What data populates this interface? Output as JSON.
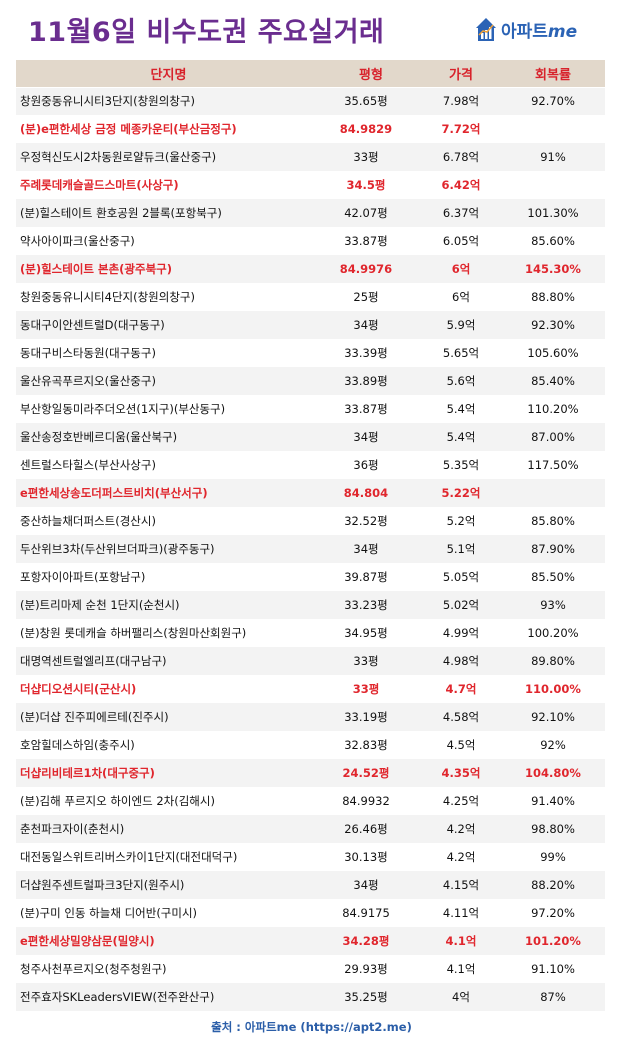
{
  "header": {
    "title": "11월6일 비수도권 주요실거래",
    "logo_text": "아파트",
    "logo_suffix": "me"
  },
  "table": {
    "columns": [
      "단지명",
      "평형",
      "가격",
      "회복률"
    ],
    "rows": [
      {
        "name": "창원중동유니시티3단지(창원의창구)",
        "area": "35.65평",
        "price": "7.98억",
        "rate": "92.70%",
        "highlight": false,
        "rate_red": false
      },
      {
        "name": "(분)e편한세상 금정 메종카운티(부산금정구)",
        "area": "84.9829",
        "price": "7.72억",
        "rate": "",
        "highlight": true,
        "rate_red": false
      },
      {
        "name": "우정혁신도시2차동원로얄듀크(울산중구)",
        "area": "33평",
        "price": "6.78억",
        "rate": "91%",
        "highlight": false,
        "rate_red": false
      },
      {
        "name": "주례롯데캐슬골드스마트(사상구)",
        "area": "34.5평",
        "price": "6.42억",
        "rate": "",
        "highlight": true,
        "rate_red": false
      },
      {
        "name": "(분)힐스테이트 환호공원 2블록(포항북구)",
        "area": "42.07평",
        "price": "6.37억",
        "rate": "101.30%",
        "highlight": false,
        "rate_red": false
      },
      {
        "name": "약사아이파크(울산중구)",
        "area": "33.87평",
        "price": "6.05억",
        "rate": "85.60%",
        "highlight": false,
        "rate_red": false
      },
      {
        "name": "(분)힐스테이트 본촌(광주북구)",
        "area": "84.9976",
        "price": "6억",
        "rate": "145.30%",
        "highlight": true,
        "rate_red": true
      },
      {
        "name": "창원중동유니시티4단지(창원의창구)",
        "area": "25평",
        "price": "6억",
        "rate": "88.80%",
        "highlight": false,
        "rate_red": false
      },
      {
        "name": "동대구이안센트럴D(대구동구)",
        "area": "34평",
        "price": "5.9억",
        "rate": "92.30%",
        "highlight": false,
        "rate_red": false
      },
      {
        "name": "동대구비스타동원(대구동구)",
        "area": "33.39평",
        "price": "5.65억",
        "rate": "105.60%",
        "highlight": false,
        "rate_red": false
      },
      {
        "name": "울산유곡푸르지오(울산중구)",
        "area": "33.89평",
        "price": "5.6억",
        "rate": "85.40%",
        "highlight": false,
        "rate_red": false
      },
      {
        "name": "부산항일동미라주더오션(1지구)(부산동구)",
        "area": "33.87평",
        "price": "5.4억",
        "rate": "110.20%",
        "highlight": false,
        "rate_red": false
      },
      {
        "name": "울산송정호반베르디움(울산북구)",
        "area": "34평",
        "price": "5.4억",
        "rate": "87.00%",
        "highlight": false,
        "rate_red": false
      },
      {
        "name": "센트럴스타힐스(부산사상구)",
        "area": "36평",
        "price": "5.35억",
        "rate": "117.50%",
        "highlight": false,
        "rate_red": false
      },
      {
        "name": "e편한세상송도더퍼스트비치(부산서구)",
        "area": "84.804",
        "price": "5.22억",
        "rate": "",
        "highlight": true,
        "rate_red": false
      },
      {
        "name": "중산하늘채더퍼스트(경산시)",
        "area": "32.52평",
        "price": "5.2억",
        "rate": "85.80%",
        "highlight": false,
        "rate_red": false
      },
      {
        "name": "두산위브3차(두산위브더파크)(광주동구)",
        "area": "34평",
        "price": "5.1억",
        "rate": "87.90%",
        "highlight": false,
        "rate_red": false
      },
      {
        "name": "포항자이아파트(포항남구)",
        "area": "39.87평",
        "price": "5.05억",
        "rate": "85.50%",
        "highlight": false,
        "rate_red": false
      },
      {
        "name": "(분)트리마제 순천 1단지(순천시)",
        "area": "33.23평",
        "price": "5.02억",
        "rate": "93%",
        "highlight": false,
        "rate_red": false
      },
      {
        "name": "(분)창원 롯데캐슬 하버팰리스(창원마산회원구)",
        "area": "34.95평",
        "price": "4.99억",
        "rate": "100.20%",
        "highlight": false,
        "rate_red": false
      },
      {
        "name": "대명역센트럴엘리프(대구남구)",
        "area": "33평",
        "price": "4.98억",
        "rate": "89.80%",
        "highlight": false,
        "rate_red": false
      },
      {
        "name": "더샵디오션시티(군산시)",
        "area": "33평",
        "price": "4.7억",
        "rate": "110.00%",
        "highlight": true,
        "rate_red": true
      },
      {
        "name": "(분)더샵 진주피에르테(진주시)",
        "area": "33.19평",
        "price": "4.58억",
        "rate": "92.10%",
        "highlight": false,
        "rate_red": false
      },
      {
        "name": "호암힐데스하임(충주시)",
        "area": "32.83평",
        "price": "4.5억",
        "rate": "92%",
        "highlight": false,
        "rate_red": false
      },
      {
        "name": "더샵리비테르1차(대구중구)",
        "area": "24.52평",
        "price": "4.35억",
        "rate": "104.80%",
        "highlight": true,
        "rate_red": true
      },
      {
        "name": "(분)김해 푸르지오 하이엔드 2차(김해시)",
        "area": "84.9932",
        "price": "4.25억",
        "rate": "91.40%",
        "highlight": false,
        "rate_red": false
      },
      {
        "name": "춘천파크자이(춘천시)",
        "area": "26.46평",
        "price": "4.2억",
        "rate": "98.80%",
        "highlight": false,
        "rate_red": false
      },
      {
        "name": "대전동일스위트리버스카이1단지(대전대덕구)",
        "area": "30.13평",
        "price": "4.2억",
        "rate": "99%",
        "highlight": false,
        "rate_red": false
      },
      {
        "name": "더샵원주센트럴파크3단지(원주시)",
        "area": "34평",
        "price": "4.15억",
        "rate": "88.20%",
        "highlight": false,
        "rate_red": false
      },
      {
        "name": "(분)구미 인동 하늘채 디어반(구미시)",
        "area": "84.9175",
        "price": "4.11억",
        "rate": "97.20%",
        "highlight": false,
        "rate_red": false
      },
      {
        "name": "e편한세상밀양삼문(밀양시)",
        "area": "34.28평",
        "price": "4.1억",
        "rate": "101.20%",
        "highlight": true,
        "rate_red": true
      },
      {
        "name": "청주사천푸르지오(청주청원구)",
        "area": "29.93평",
        "price": "4.1억",
        "rate": "91.10%",
        "highlight": false,
        "rate_red": false
      },
      {
        "name": "전주효자SKLeadersVIEW(전주완산구)",
        "area": "35.25평",
        "price": "4억",
        "rate": "87%",
        "highlight": false,
        "rate_red": false
      }
    ]
  },
  "footer": {
    "source": "출처 : 아파트me (https://apt2.me)"
  },
  "colors": {
    "title": "#6a2d8f",
    "header_bg": "#e2d8cb",
    "header_text": "#d8222b",
    "highlight": "#e0262d",
    "stripe": "#f3f3f3",
    "brand": "#2b63b5"
  },
  "icons": {
    "logo": "house-chart-icon"
  }
}
